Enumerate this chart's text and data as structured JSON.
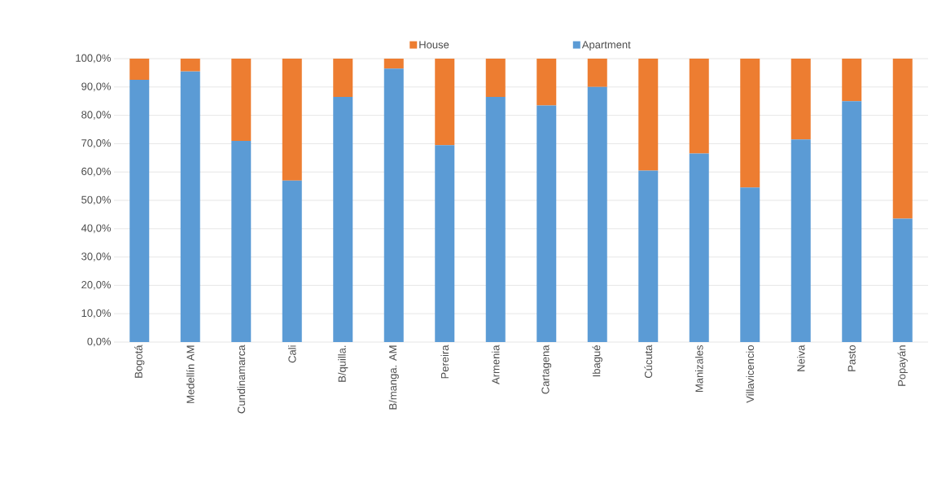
{
  "chart_data": {
    "type": "bar",
    "stacked": true,
    "categories": [
      "Bogotá",
      "Medellín  AM",
      "Cundinamarca",
      "Cali",
      "B/quilla.",
      "B/manga. AM",
      "Pereira",
      "Armenia",
      "Cartagena",
      "Ibagué",
      "Cúcuta",
      "Manizales",
      "Villavicencio",
      "Neiva",
      "Pasto",
      "Popayán"
    ],
    "series": [
      {
        "name": "Apartment",
        "color": "#5b9bd5",
        "values": [
          92.5,
          95.5,
          71,
          57,
          86.5,
          96.5,
          69.5,
          86.5,
          83.5,
          90,
          60.5,
          66.5,
          54.5,
          71.5,
          85,
          43.5
        ]
      },
      {
        "name": "House",
        "color": "#ed7d31",
        "values": [
          7.5,
          4.5,
          29,
          43,
          13.5,
          3.5,
          30.5,
          13.5,
          16.5,
          10,
          39.5,
          33.5,
          45.5,
          28.5,
          15,
          56.5
        ]
      }
    ],
    "ylim": [
      0,
      100
    ],
    "yticks": [
      {
        "value": 0,
        "label": "0,0%"
      },
      {
        "value": 10,
        "label": "10,0%"
      },
      {
        "value": 20,
        "label": "20,0%"
      },
      {
        "value": 30,
        "label": "30,0%"
      },
      {
        "value": 40,
        "label": "40,0%"
      },
      {
        "value": 50,
        "label": "50,0%"
      },
      {
        "value": 60,
        "label": "60,0%"
      },
      {
        "value": 70,
        "label": "70,0%"
      },
      {
        "value": 80,
        "label": "80,0%"
      },
      {
        "value": 90,
        "label": "90,0%"
      },
      {
        "value": 100,
        "label": "100,0%"
      }
    ],
    "grid": "y",
    "legend": "top"
  }
}
